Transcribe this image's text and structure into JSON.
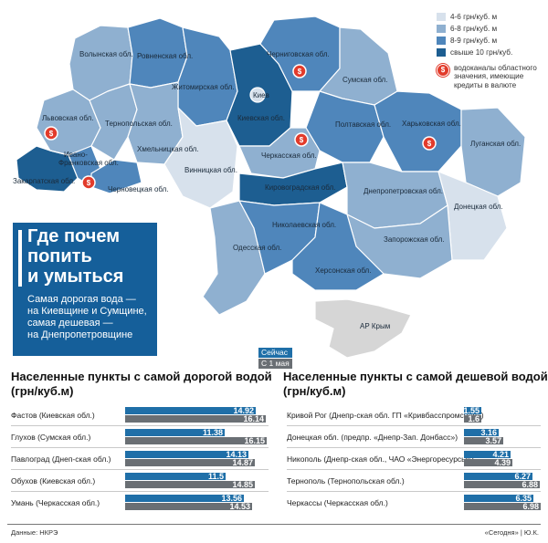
{
  "headline": {
    "title": "Где почем\nпопить\nи умыться",
    "subtitle": "Самая дорогая вода —\nна Киевщине и Сумщине,\nсамая дешевая —\nна Днепропетровщине"
  },
  "legend": {
    "items": [
      {
        "label": "4-6 грн/куб. м",
        "color": "#d7e1ec"
      },
      {
        "label": "6-8 грн/куб. м",
        "color": "#8fb0d0"
      },
      {
        "label": "8-9 грн/куб. м",
        "color": "#4f86bb"
      },
      {
        "label": "свыше 10 грн/куб.",
        "color": "#1d5e91"
      }
    ],
    "coin_text": "водоканалы областного значения, имеющие кредиты в валюте",
    "coin_symbol": "$"
  },
  "regions": {
    "volyn": "Волынская обл.",
    "rivne": "Ровненская обл.",
    "zhytomyr": "Житомирская обл.",
    "chernihiv": "Черниговская обл.",
    "sumy": "Сумская обл.",
    "lviv": "Львовская обл.",
    "ternopil": "Тернопольская обл.",
    "kyiv_city": "Киев",
    "kyiv_obl": "Киевская обл.",
    "poltava": "Полтавская обл.",
    "kharkiv": "Харьковская обл.",
    "luhansk": "Луганская обл.",
    "khmelnytsky": "Хмельницкая обл.",
    "cherkasy": "Черкасская обл.",
    "ivano_frankivsk": "Ивано-\nФранковская обл.",
    "zakarpattia": "Закарпатская обл.",
    "chernivtsi": "Черновецкая обл.",
    "vinnytsia": "Винницкая обл.",
    "kirovohrad": "Кировоградская обл.",
    "dnipro": "Днепропетровская обл.",
    "donetsk": "Донецкая обл.",
    "mykolaiv": "Николаевская обл.",
    "zaporizhia": "Запорожская обл.",
    "odesa": "Одесская обл.",
    "kherson": "Херсонская обл.",
    "crimea": "АР Крым"
  },
  "chart_legend": {
    "now": "Сейчас",
    "jan": "С 1 мая"
  },
  "colors": {
    "now": "#1f6fa8",
    "jan": "#6a6f74",
    "box": "#155f9a",
    "coin": "#e23b2b"
  },
  "chart_data": [
    {
      "type": "bar",
      "title": "Населенные пункты с самой дорогой водой (грн/куб.м)",
      "categories": [
        "Фастов (Киевская обл.)",
        "Глухов (Сумская обл.)",
        "Павлоград (Днеп-ская обл.)",
        "Обухов (Киевская обл.)",
        "Умань (Черкасская обл.)"
      ],
      "series": [
        {
          "name": "Сейчас",
          "values": [
            14.92,
            11.38,
            14.13,
            11.5,
            13.56
          ]
        },
        {
          "name": "С 1 мая",
          "values": [
            16.14,
            16.15,
            14.87,
            14.85,
            14.53
          ]
        }
      ]
    },
    {
      "type": "bar",
      "title": "Населенные пункты с самой дешевой водой (грн/куб.м)",
      "categories": [
        "Кривой Рог (Днепр-ская обл. ГП «Кривбасспромснаб»)",
        "Донецкая обл. (предпр. «Днепр-Зап. Донбасс»)",
        "Никополь (Днепр-ская обл., ЧАО «Энергоресурсы»)",
        "Тернополь (Тернопольская обл.)",
        "Черкассы (Черкасская обл.)"
      ],
      "series": [
        {
          "name": "Сейчас",
          "values": [
            1.55,
            3.16,
            4.21,
            6.27,
            6.35
          ]
        },
        {
          "name": "С 1 мая",
          "values": [
            1.6,
            3.57,
            4.39,
            6.88,
            6.98
          ]
        }
      ]
    }
  ],
  "footer": {
    "source": "Данные: НКРЭ",
    "credit": "«Сегодня» | Ю.К."
  }
}
